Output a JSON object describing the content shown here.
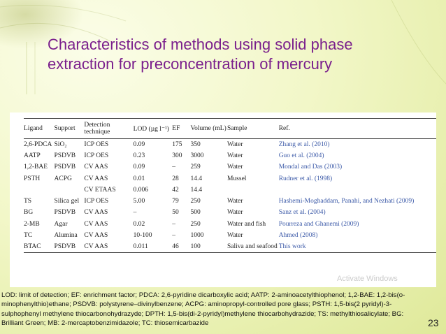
{
  "slide": {
    "title": "Characteristics of methods using solid phase extraction for preconcentration of mercury",
    "page_number": "23",
    "watermark": "Activate Windows",
    "caption": "LOD: limit of detection; EF: enrichment factor; PDCA: 2,6-pyridine dicarboxylic acid; AATP: 2-aminoacetylthiophenol; 1,2-BAE: 1,2-bis(o-minophenylthio)ethane; PSDVB: polystyrene–divinylbenzene; ACPG: aminopropyl-controlled pore glass; PSTH: 1,5-bis(2 pyridyl)-3-sulphophenyl methylene thiocarbonohydrazyde; DPTH: 1,5-bis(di-2-pyridyl)methylene thiocarbohydrazide; TS: methylthiosalicylate; BG: Brilliant Green; MB: 2-mercaptobenzimidazole; TC: thiosemicarbazide"
  },
  "table": {
    "headers": [
      "Ligand",
      "Support",
      "Detection technique",
      "LOD (µg l⁻¹)",
      "EF",
      "Volume (mL)",
      "Sample",
      "Ref."
    ],
    "rows": [
      [
        "2,6-PDCA",
        "SiO₂",
        "ICP OES",
        "0.09",
        "175",
        "350",
        "Water",
        "Zhang et al. (2010)"
      ],
      [
        "AATP",
        "PSDVB",
        "ICP OES",
        "0.23",
        "300",
        "3000",
        "Water",
        "Guo et al. (2004)"
      ],
      [
        "1,2-BAE",
        "PSDVB",
        "CV AAS",
        "0.09",
        "–",
        "259",
        "Water",
        "Mondal and Das (2003)"
      ],
      [
        "PSTH",
        "ACPG",
        "CV AAS",
        "0.01",
        "28",
        "14.4",
        "Mussel",
        "Rudner et al. (1998)"
      ],
      [
        "",
        "",
        "CV ETAAS",
        "0.006",
        "42",
        "14.4",
        "",
        ""
      ],
      [
        "TS",
        "Silica gel",
        "ICP OES",
        "5.00",
        "79",
        "250",
        "Water",
        "Hashemi-Moghaddam, Panahi, and Nezhati (2009)"
      ],
      [
        "BG",
        "PSDVB",
        "CV AAS",
        "–",
        "50",
        "500",
        "Water",
        "Sanz et al. (2004)"
      ],
      [
        "2-MB",
        "Agar",
        "CV AAS",
        "0.02",
        "–",
        "250",
        "Water and fish",
        "Pourreza and Ghanemi (2009)"
      ],
      [
        "TC",
        "Alumina",
        "CV AAS",
        "10-100",
        "–",
        "1000",
        "Water",
        "Ahmed (2008)"
      ],
      [
        "BTAC",
        "PSDVB",
        "CV AAS",
        "0.011",
        "46",
        "100",
        "Saliva and seafood",
        "This work"
      ]
    ]
  },
  "colors": {
    "title": "#7a1f8c",
    "reference_link": "#3c5aa8",
    "background": "#f2f7c8"
  }
}
